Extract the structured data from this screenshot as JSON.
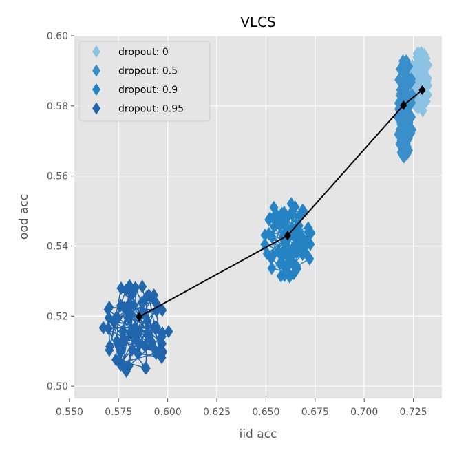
{
  "chart_data": {
    "type": "scatter",
    "title": "VLCS",
    "xlabel": "iid acc",
    "ylabel": "ood acc",
    "xlim": [
      0.5525,
      0.7395
    ],
    "ylim": [
      0.4965,
      0.6
    ],
    "xticks": [
      0.55,
      0.575,
      0.6,
      0.625,
      0.65,
      0.675,
      0.7,
      0.725
    ],
    "xtick_labels": [
      "0.550",
      "0.575",
      "0.600",
      "0.625",
      "0.650",
      "0.675",
      "0.700",
      "0.725"
    ],
    "yticks": [
      0.5,
      0.52,
      0.54,
      0.56,
      0.58,
      0.6
    ],
    "ytick_labels": [
      "0.50",
      "0.52",
      "0.54",
      "0.56",
      "0.58",
      "0.60"
    ],
    "grid": true,
    "legend_position": "top-left",
    "series": [
      {
        "name": "dropout: 0",
        "color": "#8cc2e4",
        "cluster": {
          "cx": 0.7285,
          "cy": 0.5872,
          "rx": 0.0045,
          "ry": 0.0085,
          "xmin": 0.724,
          "xmax": 0.7335,
          "ymin": 0.5785,
          "ymax": 0.5955
        },
        "mean": [
          0.7295,
          0.5845
        ]
      },
      {
        "name": "dropout: 0.5",
        "color": "#3a8fcb",
        "cluster": {
          "cx": 0.7208,
          "cy": 0.579,
          "rx": 0.0038,
          "ry": 0.014,
          "xmin": 0.7165,
          "xmax": 0.726,
          "ymin": 0.5655,
          "ymax": 0.593
        },
        "mean": [
          0.72,
          0.5802
        ]
      },
      {
        "name": "dropout: 0.9",
        "color": "#2583c4",
        "cluster": {
          "cx": 0.6615,
          "cy": 0.542,
          "rx": 0.012,
          "ry": 0.011,
          "xmin": 0.6435,
          "xmax": 0.677,
          "ymin": 0.5275,
          "ymax": 0.5555
        },
        "mean": [
          0.661,
          0.543
        ]
      },
      {
        "name": "dropout: 0.95",
        "color": "#2166ac",
        "cluster": {
          "cx": 0.584,
          "cy": 0.5165,
          "rx": 0.016,
          "ry": 0.0125,
          "xmin": 0.5625,
          "xmax": 0.6135,
          "ymin": 0.4995,
          "ymax": 0.534
        },
        "mean": [
          0.5855,
          0.5198
        ]
      }
    ],
    "mean_line": {
      "color": "#000000",
      "points": [
        [
          0.5855,
          0.5198
        ],
        [
          0.661,
          0.543
        ],
        [
          0.72,
          0.5802
        ],
        [
          0.7295,
          0.5845
        ]
      ]
    }
  }
}
